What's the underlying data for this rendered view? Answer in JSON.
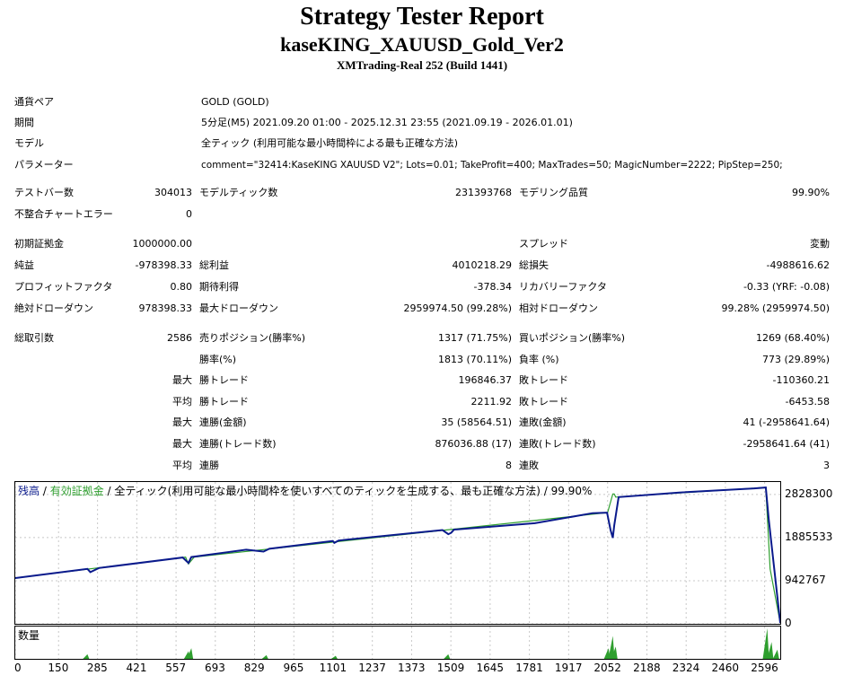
{
  "header": {
    "title": "Strategy Tester Report",
    "ea_name": "kaseKING_XAUUSD_Gold_Ver2",
    "server": "XMTrading-Real 252 (Build 1441)"
  },
  "settings": {
    "symbol_label": "通貨ペア",
    "symbol_value": "GOLD (GOLD)",
    "period_label": "期間",
    "period_value": "5分足(M5) 2021.09.20 01:00 - 2025.12.31 23:55 (2021.09.19 - 2026.01.01)",
    "model_label": "モデル",
    "model_value": "全ティック (利用可能な最小時間枠による最も正確な方法)",
    "params_label": "パラメーター",
    "params_value": "comment=\"32414:KaseKING XAUUSD V2\"; Lots=0.01; TakeProfit=400; MaxTrades=50; MagicNumber=2222; PipStep=250;"
  },
  "stats": {
    "bars_label": "テストバー数",
    "bars_value": "304013",
    "ticks_label": "モデルティック数",
    "ticks_value": "231393768",
    "quality_label": "モデリング品質",
    "quality_value": "99.90%",
    "mismatch_label": "不整合チャートエラー",
    "mismatch_value": "0",
    "deposit_label": "初期証拠金",
    "deposit_value": "1000000.00",
    "spread_label": "スプレッド",
    "spread_value": "変動",
    "net_label": "純益",
    "net_value": "-978398.33",
    "gross_profit_label": "総利益",
    "gross_profit_value": "4010218.29",
    "gross_loss_label": "総損失",
    "gross_loss_value": "-4988616.62",
    "pf_label": "プロフィットファクタ",
    "pf_value": "0.80",
    "expected_label": "期待利得",
    "expected_value": "-378.34",
    "recovery_label": "リカバリーファクタ",
    "recovery_value": "-0.33 (YRF: -0.08)",
    "abs_dd_label": "絶対ドローダウン",
    "abs_dd_value": "978398.33",
    "max_dd_label": "最大ドローダウン",
    "max_dd_value": "2959974.50 (99.28%)",
    "rel_dd_label": "相対ドローダウン",
    "rel_dd_value": "99.28% (2959974.50)",
    "trades_label": "総取引数",
    "trades_value": "2586",
    "short_label": "売りポジション(勝率%)",
    "short_value": "1317 (71.75%)",
    "long_label": "買いポジション(勝率%)",
    "long_value": "1269 (68.40%)",
    "winrate_label": "勝率(%)",
    "winrate_value": "1813 (70.11%)",
    "lossrate_label": "負率 (%)",
    "lossrate_value": "773 (29.89%)",
    "max_label": "最大",
    "avg_label": "平均",
    "win_trade_label": "勝トレード",
    "loss_trade_label": "敗トレード",
    "largest_win_value": "196846.37",
    "largest_loss_value": "-110360.21",
    "avg_win_value": "2211.92",
    "avg_loss_value": "-6453.58",
    "consec_win_money_label": "連勝(金額)",
    "consec_win_money_value": "35 (58564.51)",
    "consec_loss_money_label": "連敗(金額)",
    "consec_loss_money_value": "41 (-2958641.64)",
    "consec_win_trades_label": "連勝(トレード数)",
    "consec_win_trades_value": "876036.88 (17)",
    "consec_loss_trades_label": "連敗(トレード数)",
    "consec_loss_trades_value": "-2958641.64 (41)",
    "avg_consec_win_label": "連勝",
    "avg_consec_win_value": "8",
    "avg_consec_loss_label": "連敗",
    "avg_consec_loss_value": "3"
  },
  "chart_legend": {
    "balance": "残高",
    "sep1": " / ",
    "equity": "有効証拠金",
    "rest": " / 全ティック(利用可能な最小時間枠を使いすべてのティックを生成する、最も正確な方法) / 99.90%"
  },
  "volume_label": "数量",
  "chart_data": {
    "type": "line",
    "ylim": [
      0,
      3100000
    ],
    "xlim": [
      0,
      2650
    ],
    "yticks": [
      "2828300",
      "1885533",
      "942767",
      "0"
    ],
    "ytick_values": [
      2828300,
      1885533,
      942767,
      0
    ],
    "xticks": [
      "0",
      "150",
      "285",
      "421",
      "557",
      "693",
      "829",
      "965",
      "1101",
      "1237",
      "1373",
      "1509",
      "1645",
      "1781",
      "1917",
      "2052",
      "2188",
      "2324",
      "2460",
      "2596"
    ],
    "xtick_values": [
      0,
      150,
      285,
      421,
      557,
      693,
      829,
      965,
      1101,
      1237,
      1373,
      1509,
      1645,
      1781,
      1917,
      2052,
      2188,
      2324,
      2460,
      2596
    ],
    "series": [
      {
        "name": "残高",
        "color": "#0a1a8c",
        "x": [
          0,
          250,
          260,
          290,
          580,
          600,
          610,
          800,
          860,
          880,
          1100,
          1105,
          1120,
          1480,
          1500,
          1510,
          1520,
          1800,
          2000,
          2050,
          2062,
          2070,
          2075,
          2090,
          2300,
          2560,
          2600,
          2610,
          2650
        ],
        "y": [
          1000000,
          1200000,
          1130000,
          1220000,
          1450000,
          1330000,
          1460000,
          1620000,
          1580000,
          1640000,
          1810000,
          1770000,
          1820000,
          2050000,
          1960000,
          1990000,
          2060000,
          2200000,
          2420000,
          2430000,
          2050000,
          1880000,
          2150000,
          2770000,
          2870000,
          2960000,
          2980000,
          2300000,
          20000
        ]
      },
      {
        "name": "有効証拠金",
        "color": "#2f9f2f",
        "x": [
          0,
          590,
          600,
          620,
          2052,
          2070,
          2075,
          2080,
          2595,
          2600,
          2615,
          2650
        ],
        "y": [
          1000000,
          1460000,
          1310000,
          1460000,
          2430000,
          2840000,
          2840000,
          2770000,
          2980000,
          2980000,
          1200000,
          20000
        ]
      }
    ],
    "volume": {
      "color": "#2f9f2f",
      "x": [
        250,
        600,
        610,
        870,
        1110,
        1500,
        2055,
        2070,
        2080,
        2605,
        2620,
        2640
      ],
      "y": [
        0.15,
        0.25,
        0.35,
        0.12,
        0.1,
        0.15,
        0.35,
        0.75,
        0.4,
        1.0,
        0.55,
        0.3
      ]
    }
  }
}
